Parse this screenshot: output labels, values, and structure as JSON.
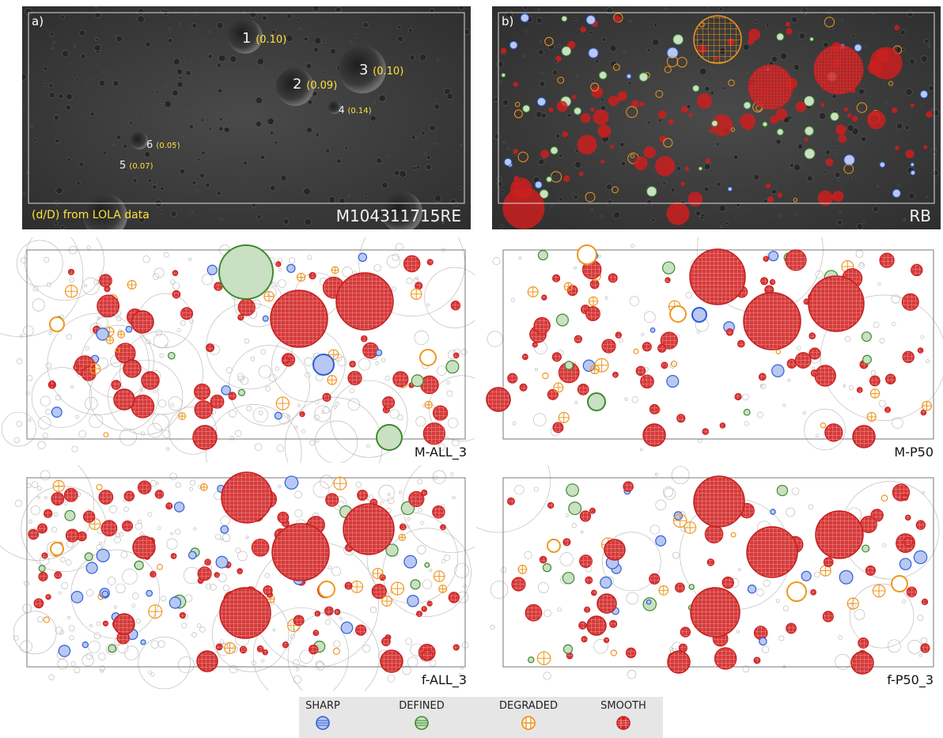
{
  "panel_a": {
    "letter": "a)",
    "image_id": "M104311715RE",
    "note": "(d/D) from LOLA data",
    "craters": [
      {
        "num": "1",
        "dd": "(0.10)"
      },
      {
        "num": "2",
        "dd": "(0.09)"
      },
      {
        "num": "3",
        "dd": "(0.10)"
      },
      {
        "num": "4",
        "dd": "(0.14)"
      },
      {
        "num": "6",
        "dd": "(0.05)"
      },
      {
        "num": "5",
        "dd": "(0.07)"
      }
    ]
  },
  "panel_b": {
    "letter": "b)",
    "caption": "RB"
  },
  "maps": {
    "m_all_3": "M-ALL_3",
    "m_p50": "M-P50",
    "f_all_3": "f-ALL_3",
    "f_p50_3": "f-P50_3"
  },
  "legend": {
    "items": [
      {
        "label": "SHARP",
        "color": "#2d5fd6",
        "icon": "sharp-hatch-icon"
      },
      {
        "label": "DEFINED",
        "color": "#3e8a2e",
        "icon": "defined-hatch-icon"
      },
      {
        "label": "DEGRADED",
        "color": "#f0961e",
        "icon": "degraded-hatch-icon"
      },
      {
        "label": "SMOOTH",
        "color": "#cc1f1f",
        "icon": "smooth-hatch-icon"
      }
    ]
  }
}
